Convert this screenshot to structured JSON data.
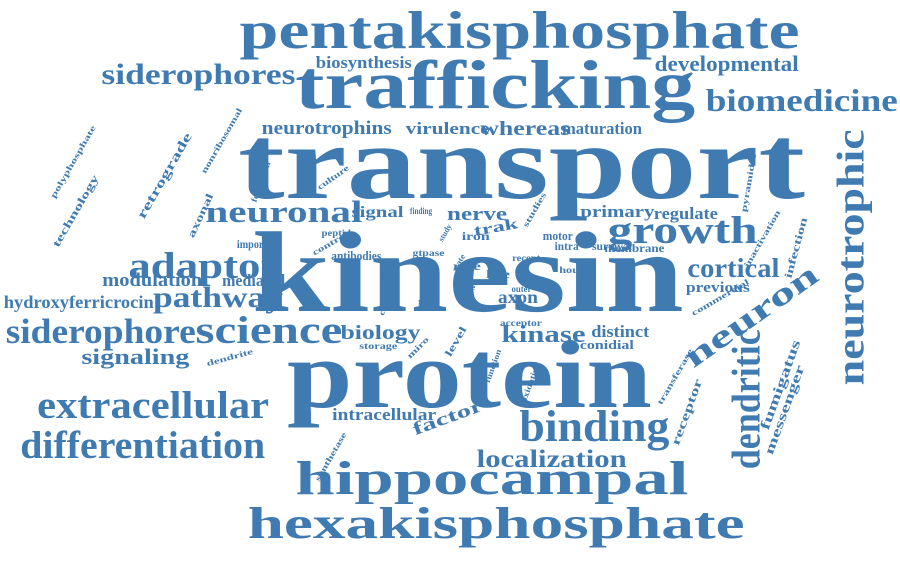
{
  "color": "#3f7ab0",
  "words": [
    {
      "text": "pentakisphosphate"
    },
    {
      "text": "trafficking"
    },
    {
      "text": "transport"
    },
    {
      "text": "kinesin"
    },
    {
      "text": "protein"
    },
    {
      "text": "hexakisphosphate"
    },
    {
      "text": "hippocampal"
    },
    {
      "text": "neuron"
    },
    {
      "text": "factor"
    },
    {
      "text": "growth"
    },
    {
      "text": "trak"
    },
    {
      "text": "binding"
    },
    {
      "text": "differentiation"
    },
    {
      "text": "extracellular"
    },
    {
      "text": "science"
    },
    {
      "text": "siderophore"
    },
    {
      "text": "adaptor"
    },
    {
      "text": "pathway"
    },
    {
      "text": "neuronal"
    },
    {
      "text": "biomedicine"
    },
    {
      "text": "siderophores"
    },
    {
      "text": "neurotrophic"
    },
    {
      "text": "retrograde"
    },
    {
      "text": "technology"
    },
    {
      "text": "fumigatus"
    },
    {
      "text": "messenger"
    },
    {
      "text": "dendritic"
    },
    {
      "text": "receptor"
    },
    {
      "text": "infection"
    },
    {
      "text": "localization"
    },
    {
      "text": "cortical"
    },
    {
      "text": "dendrite"
    },
    {
      "text": "signaling"
    },
    {
      "text": "hydroxyferricrocin"
    },
    {
      "text": "modulation"
    },
    {
      "text": "mediated"
    },
    {
      "text": "axonal"
    },
    {
      "text": "polyphosphate"
    },
    {
      "text": "biosynthesis"
    },
    {
      "text": "developmental"
    },
    {
      "text": "neurotrophins"
    },
    {
      "text": "virulence"
    },
    {
      "text": "whereas"
    },
    {
      "text": "maturation"
    },
    {
      "text": "biology"
    },
    {
      "text": "cell"
    },
    {
      "text": "nerve"
    },
    {
      "text": "primary"
    },
    {
      "text": "regulate"
    },
    {
      "text": "signal"
    },
    {
      "text": "kinase"
    },
    {
      "text": "distinct"
    },
    {
      "text": "conidial"
    },
    {
      "text": "axon"
    },
    {
      "text": "level"
    },
    {
      "text": "intracellular"
    },
    {
      "text": "previous"
    },
    {
      "text": "commercial"
    },
    {
      "text": "membrane"
    },
    {
      "text": "transferase"
    },
    {
      "text": "pyramidal"
    },
    {
      "text": "inactivation"
    },
    {
      "text": "nonribosomal"
    },
    {
      "text": "culture"
    },
    {
      "text": "formation"
    },
    {
      "text": "important"
    },
    {
      "text": "control"
    },
    {
      "text": "peptide"
    },
    {
      "text": "antibodies"
    },
    {
      "text": "iron"
    },
    {
      "text": "motor"
    },
    {
      "text": "intra"
    },
    {
      "text": "survival"
    },
    {
      "text": "studies"
    },
    {
      "text": "miro"
    },
    {
      "text": "role"
    },
    {
      "text": "life"
    },
    {
      "text": "change"
    },
    {
      "text": "dynein"
    },
    {
      "text": "enzyme"
    },
    {
      "text": "storage"
    },
    {
      "text": "synthetase"
    },
    {
      "text": "oxidative"
    },
    {
      "text": "acceptor"
    },
    {
      "text": "function"
    },
    {
      "text": "recent"
    },
    {
      "text": "house"
    },
    {
      "text": "finding"
    },
    {
      "text": "gtpase"
    },
    {
      "text": "germ"
    },
    {
      "text": "state"
    },
    {
      "text": "study"
    },
    {
      "text": "lobe"
    },
    {
      "text": "outer"
    }
  ]
}
